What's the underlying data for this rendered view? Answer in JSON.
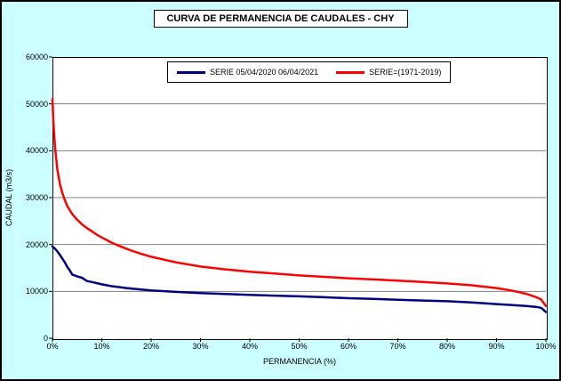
{
  "colors": {
    "background": "#CCFFFF",
    "plot_background": "#FFFFFF",
    "grid": "#808080",
    "axis": "#000000",
    "series1": "#000080",
    "series2": "#FF0000"
  },
  "chart_data": {
    "type": "line",
    "title": "CURVA DE PERMANENCIA DE CAUDALES - CHY",
    "xlabel": "PERMANENCIA (%)",
    "ylabel": "CAUDAL (m3/s)",
    "xlim": [
      0,
      100
    ],
    "ylim": [
      0,
      60000
    ],
    "grid": "horizontal",
    "legend_position": "top-center",
    "x_tick_values": [
      0,
      10,
      20,
      30,
      40,
      50,
      60,
      70,
      80,
      90,
      100
    ],
    "x_tick_labels": [
      "0%",
      "10%",
      "20%",
      "30%",
      "40%",
      "50%",
      "60%",
      "70%",
      "80%",
      "90%",
      "100%"
    ],
    "y_tick_values": [
      0,
      10000,
      20000,
      30000,
      40000,
      50000,
      60000
    ],
    "y_tick_labels": [
      "0",
      "10000",
      "20000",
      "30000",
      "40000",
      "50000",
      "60000"
    ],
    "series": [
      {
        "name": "SERIE 05/04/2020 06/04/2021",
        "color": "#000080",
        "x": [
          0,
          0.3,
          0.8,
          1.5,
          2,
          2.5,
          3,
          3.5,
          4,
          4.5,
          5,
          6,
          7,
          8,
          10,
          12,
          15,
          18,
          20,
          25,
          30,
          35,
          40,
          45,
          50,
          55,
          60,
          65,
          70,
          75,
          80,
          85,
          90,
          93,
          96,
          98,
          99,
          99.5,
          100
        ],
        "y": [
          19600,
          19300,
          18800,
          17800,
          17000,
          16200,
          15200,
          14500,
          13600,
          13400,
          13200,
          12900,
          12200,
          12000,
          11500,
          11100,
          10700,
          10400,
          10200,
          9900,
          9650,
          9450,
          9250,
          9100,
          8950,
          8750,
          8550,
          8400,
          8200,
          8050,
          7900,
          7650,
          7300,
          7100,
          6900,
          6700,
          6500,
          6100,
          5600
        ]
      },
      {
        "name": "SERIE=(1971-2019)",
        "color": "#FF0000",
        "x": [
          0,
          0.2,
          0.5,
          1,
          1.5,
          2,
          2.5,
          3,
          4,
          5,
          6,
          7,
          8,
          9,
          10,
          12,
          14,
          16,
          18,
          20,
          25,
          30,
          35,
          40,
          45,
          50,
          55,
          60,
          65,
          70,
          75,
          80,
          85,
          90,
          93,
          96,
          98,
          99,
          100
        ],
        "y": [
          51000,
          46000,
          41000,
          36000,
          33000,
          31000,
          29500,
          28200,
          26500,
          25300,
          24300,
          23500,
          22800,
          22100,
          21500,
          20400,
          19500,
          18700,
          18000,
          17400,
          16200,
          15300,
          14700,
          14200,
          13800,
          13400,
          13100,
          12800,
          12550,
          12300,
          12000,
          11700,
          11300,
          10700,
          10200,
          9500,
          8800,
          8300,
          6900
        ]
      }
    ]
  }
}
